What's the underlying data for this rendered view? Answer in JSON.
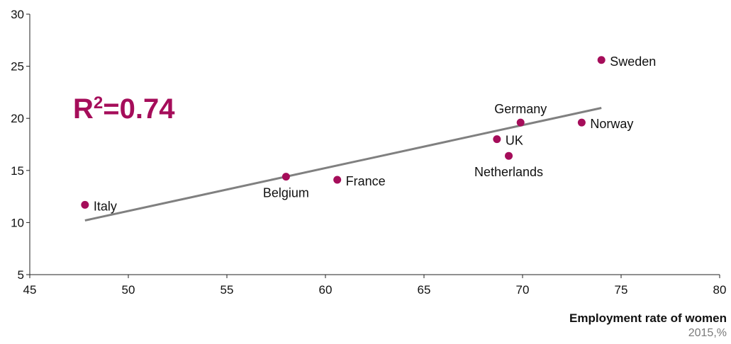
{
  "colors": {
    "point": "#a50d5a",
    "trend": "#808080",
    "axis": "#222222",
    "annotation": "#a50d5a"
  },
  "annotation": {
    "r2_prefix": "R",
    "r2_sup": "2",
    "r2_value": "=0.74"
  },
  "x_title": "Employment rate of women",
  "x_subtitle": "2015,%",
  "chart_data": {
    "type": "scatter",
    "title": "",
    "xlabel": "Employment rate of women",
    "ylabel": "",
    "xlim": [
      45,
      80
    ],
    "ylim": [
      5,
      30
    ],
    "xticks": [
      45,
      50,
      55,
      60,
      65,
      70,
      75,
      80
    ],
    "yticks": [
      5,
      10,
      15,
      20,
      25,
      30
    ],
    "grid": false,
    "points": [
      {
        "label": "Italy",
        "x": 47.8,
        "y": 11.7
      },
      {
        "label": "Belgium",
        "x": 58.0,
        "y": 14.4
      },
      {
        "label": "France",
        "x": 60.6,
        "y": 14.1
      },
      {
        "label": "UK",
        "x": 68.7,
        "y": 18.0
      },
      {
        "label": "Netherlands",
        "x": 69.3,
        "y": 16.4
      },
      {
        "label": "Germany",
        "x": 69.9,
        "y": 19.6
      },
      {
        "label": "Norway",
        "x": 73.0,
        "y": 19.6
      },
      {
        "label": "Sweden",
        "x": 74.0,
        "y": 25.6
      }
    ],
    "trendline": {
      "x": [
        47.8,
        74.0
      ],
      "y": [
        10.2,
        21.0
      ]
    },
    "annotation": "R2=0.74"
  }
}
